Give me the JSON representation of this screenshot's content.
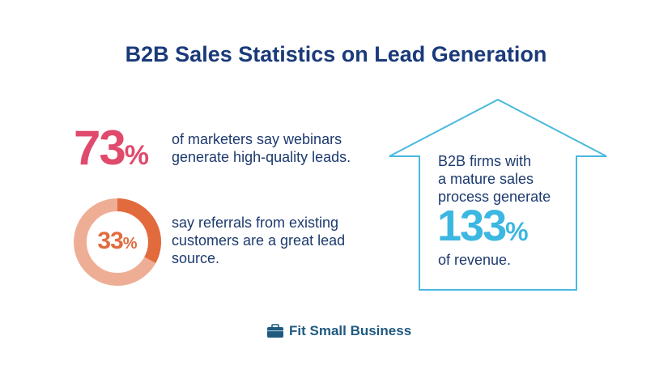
{
  "title": "B2B Sales Statistics on Lead Generation",
  "stats": [
    {
      "value": "73",
      "unit": "%",
      "text_lines": [
        "of marketers say webinars",
        "generate high-quality leads."
      ],
      "color": "#e04a6c"
    },
    {
      "value": "33",
      "unit": "%",
      "percent": 33,
      "text_lines": [
        "say referrals from existing",
        "customers are a great lead",
        "source."
      ],
      "color": "#e26b3e",
      "ring_color": "#eeae95"
    },
    {
      "value": "133",
      "unit": "%",
      "pre_lines": [
        "B2B firms with",
        "a mature sales",
        "process generate"
      ],
      "post_line": "of revenue.",
      "color": "#3cb7e2",
      "icon": "up-arrow-house-outline"
    }
  ],
  "logo": {
    "text": "Fit Small Business",
    "icon": "briefcase-icon",
    "color": "#1f5a80"
  }
}
